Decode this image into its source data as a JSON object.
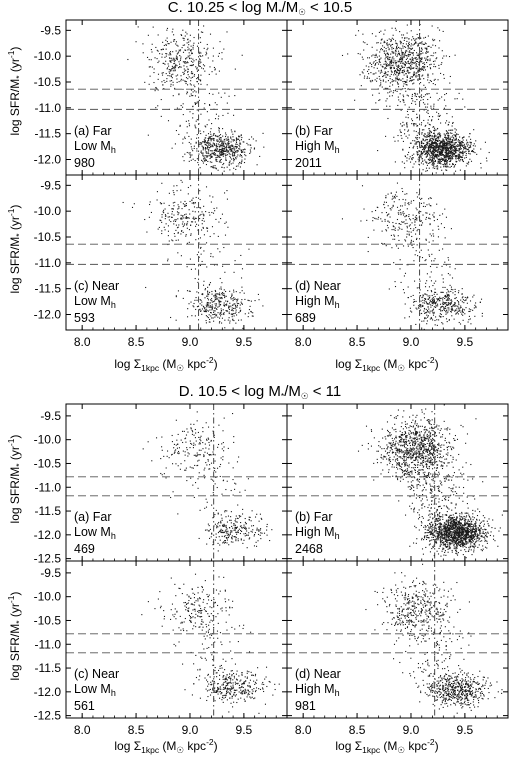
{
  "chart_data": [
    {
      "type": "scatter",
      "title": "C. 10.25 < log M*/M☉ < 10.5",
      "title_parts": {
        "prefix": "C. 10.25 < log M",
        "star": "*",
        "mid": "/M",
        "sun": "☉",
        "suffix": " < 10.5"
      },
      "xlabel": "log Σ1kpc (M☉ kpc-2)",
      "xlabel_parts": {
        "pre": "log Σ",
        "sub": "1kpc",
        "mid": " (M",
        "sun": "☉",
        "after": " kpc",
        "sup": "-2",
        "end": ")"
      },
      "ylabel": "log SFR/M* (yr-1)",
      "ylabel_parts": {
        "pre": "log SFR/M",
        "sub": "*",
        "mid": " (yr",
        "sup": "-1",
        "end": ")"
      },
      "xlim": [
        7.85,
        9.9
      ],
      "ylim": [
        -12.3,
        -9.3
      ],
      "xticks": [
        "8.0",
        "8.5",
        "9.0",
        "9.5"
      ],
      "yticks": [
        "-9.5",
        "-10.0",
        "-10.5",
        "-11.0",
        "-11.5",
        "-12.0"
      ],
      "vline_x": 9.08,
      "hlines_y": [
        -10.64,
        -11.03
      ],
      "panels": [
        {
          "label": "(a) Far",
          "mh": "Low M",
          "mh_sub": "h",
          "count": "980",
          "n_points": 980,
          "sf_center": [
            8.92,
            -10.1
          ],
          "q_center": [
            9.28,
            -11.8
          ]
        },
        {
          "label": "(b) Far",
          "mh": "High M",
          "mh_sub": "h",
          "count": "2011",
          "n_points": 2011,
          "sf_center": [
            8.92,
            -10.1
          ],
          "q_center": [
            9.28,
            -11.8
          ]
        },
        {
          "label": "(c) Near",
          "mh": "Low M",
          "mh_sub": "h",
          "count": "593",
          "n_points": 593,
          "sf_center": [
            8.95,
            -10.1
          ],
          "q_center": [
            9.28,
            -11.8
          ]
        },
        {
          "label": "(d) Near",
          "mh": "High M",
          "mh_sub": "h",
          "count": "689",
          "n_points": 689,
          "sf_center": [
            8.95,
            -10.15
          ],
          "q_center": [
            9.3,
            -11.8
          ]
        }
      ]
    },
    {
      "type": "scatter",
      "title": "D. 10.5 < log M*/M☉ < 11",
      "title_parts": {
        "prefix": "D. 10.5 < log M",
        "star": "*",
        "mid": "/M",
        "sun": "☉",
        "suffix": " < 11"
      },
      "xlabel": "log Σ1kpc (M☉ kpc-2)",
      "xlabel_parts": {
        "pre": "log Σ",
        "sub": "1kpc",
        "mid": " (M",
        "sun": "☉",
        "after": " kpc",
        "sup": "-2",
        "end": ")"
      },
      "ylabel": "log SFR/M* (yr-1)",
      "ylabel_parts": {
        "pre": "log SFR/M",
        "sub": "*",
        "mid": " (yr",
        "sup": "-1",
        "end": ")"
      },
      "xlim": [
        7.85,
        9.9
      ],
      "ylim": [
        -12.55,
        -9.25
      ],
      "xticks": [
        "8.0",
        "8.5",
        "9.0",
        "9.5"
      ],
      "yticks": [
        "-9.5",
        "-10.0",
        "-10.5",
        "-11.0",
        "-11.5",
        "-12.0",
        "-12.5"
      ],
      "vline_x": 9.22,
      "hlines_y": [
        -10.78,
        -11.18
      ],
      "panels": [
        {
          "label": "(a) Far",
          "mh": "Low M",
          "mh_sub": "h",
          "count": "469",
          "n_points": 469,
          "sf_center": [
            9.05,
            -10.2
          ],
          "q_center": [
            9.4,
            -11.9
          ]
        },
        {
          "label": "(b) Far",
          "mh": "High M",
          "mh_sub": "h",
          "count": "2468",
          "n_points": 2468,
          "sf_center": [
            9.05,
            -10.2
          ],
          "q_center": [
            9.42,
            -11.95
          ]
        },
        {
          "label": "(c) Near",
          "mh": "Low M",
          "mh_sub": "h",
          "count": "561",
          "n_points": 561,
          "sf_center": [
            9.05,
            -10.25
          ],
          "q_center": [
            9.4,
            -11.9
          ]
        },
        {
          "label": "(d) Near",
          "mh": "High M",
          "mh_sub": "h",
          "count": "981",
          "n_points": 981,
          "sf_center": [
            9.05,
            -10.25
          ],
          "q_center": [
            9.42,
            -11.95
          ]
        }
      ]
    }
  ]
}
